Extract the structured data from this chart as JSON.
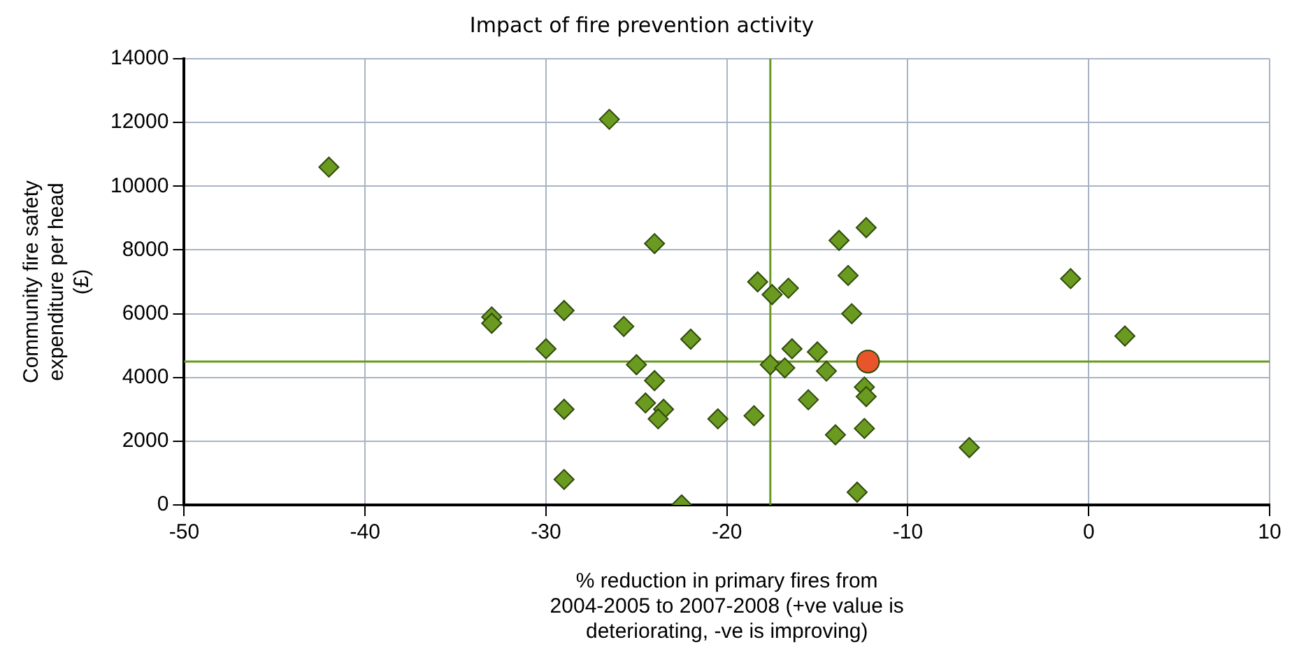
{
  "chart_data": {
    "type": "scatter",
    "title": "Impact of fire prevention activity",
    "xlabel": "% reduction in primary fires from\n2004-2005 to 2007-2008 (+ve value is\ndeteriorating, -ve is improving)",
    "ylabel": "Community fire safety\nexpenditure per head\n(£)",
    "series": [
      {
        "color": "#6a9a1f",
        "marker": "diamond",
        "x": [
          -42,
          -26.5,
          -33,
          -33,
          -30,
          -29,
          -29,
          -29,
          -25.7,
          -25,
          -24.5,
          -24,
          -24,
          -23.5,
          -23.8,
          -22.5,
          -22,
          -20.5,
          -18.5,
          -18.3,
          -17.5,
          -17.6,
          -16.6,
          -16.4,
          -16.8,
          -15.5,
          -15,
          -14.5,
          -14,
          -13.8,
          -13.3,
          -13.1,
          -12.3,
          -12.4,
          -12.3,
          -12.4,
          -12.8,
          -6.6,
          -1,
          2
        ],
        "values": [
          10600,
          12100,
          5900,
          5700,
          4900,
          6100,
          3000,
          800,
          5600,
          4400,
          3200,
          3900,
          8200,
          3000,
          2700,
          0,
          5200,
          2700,
          2800,
          7000,
          6600,
          4400,
          6800,
          4900,
          4300,
          3300,
          4800,
          4200,
          2200,
          8300,
          7200,
          6000,
          8700,
          3700,
          3400,
          2400,
          400,
          1800,
          7100,
          5300
        ]
      },
      {
        "color": "#e8552a",
        "marker": "circle",
        "x": [
          -12.2
        ],
        "values": [
          4500
        ]
      }
    ],
    "ref_lines": [
      {
        "axis": "x",
        "value": -17.6,
        "color": "#6a9a1f"
      },
      {
        "axis": "y",
        "value": 4500,
        "color": "#6a9a1f"
      }
    ],
    "xlim": [
      -50,
      10
    ],
    "xticks": [
      -50,
      -40,
      -30,
      -20,
      -10,
      0,
      10
    ],
    "ylim": [
      0,
      14000
    ],
    "yticks": [
      0,
      2000,
      4000,
      6000,
      8000,
      10000,
      12000,
      14000
    ],
    "grid": true,
    "legend": false
  }
}
